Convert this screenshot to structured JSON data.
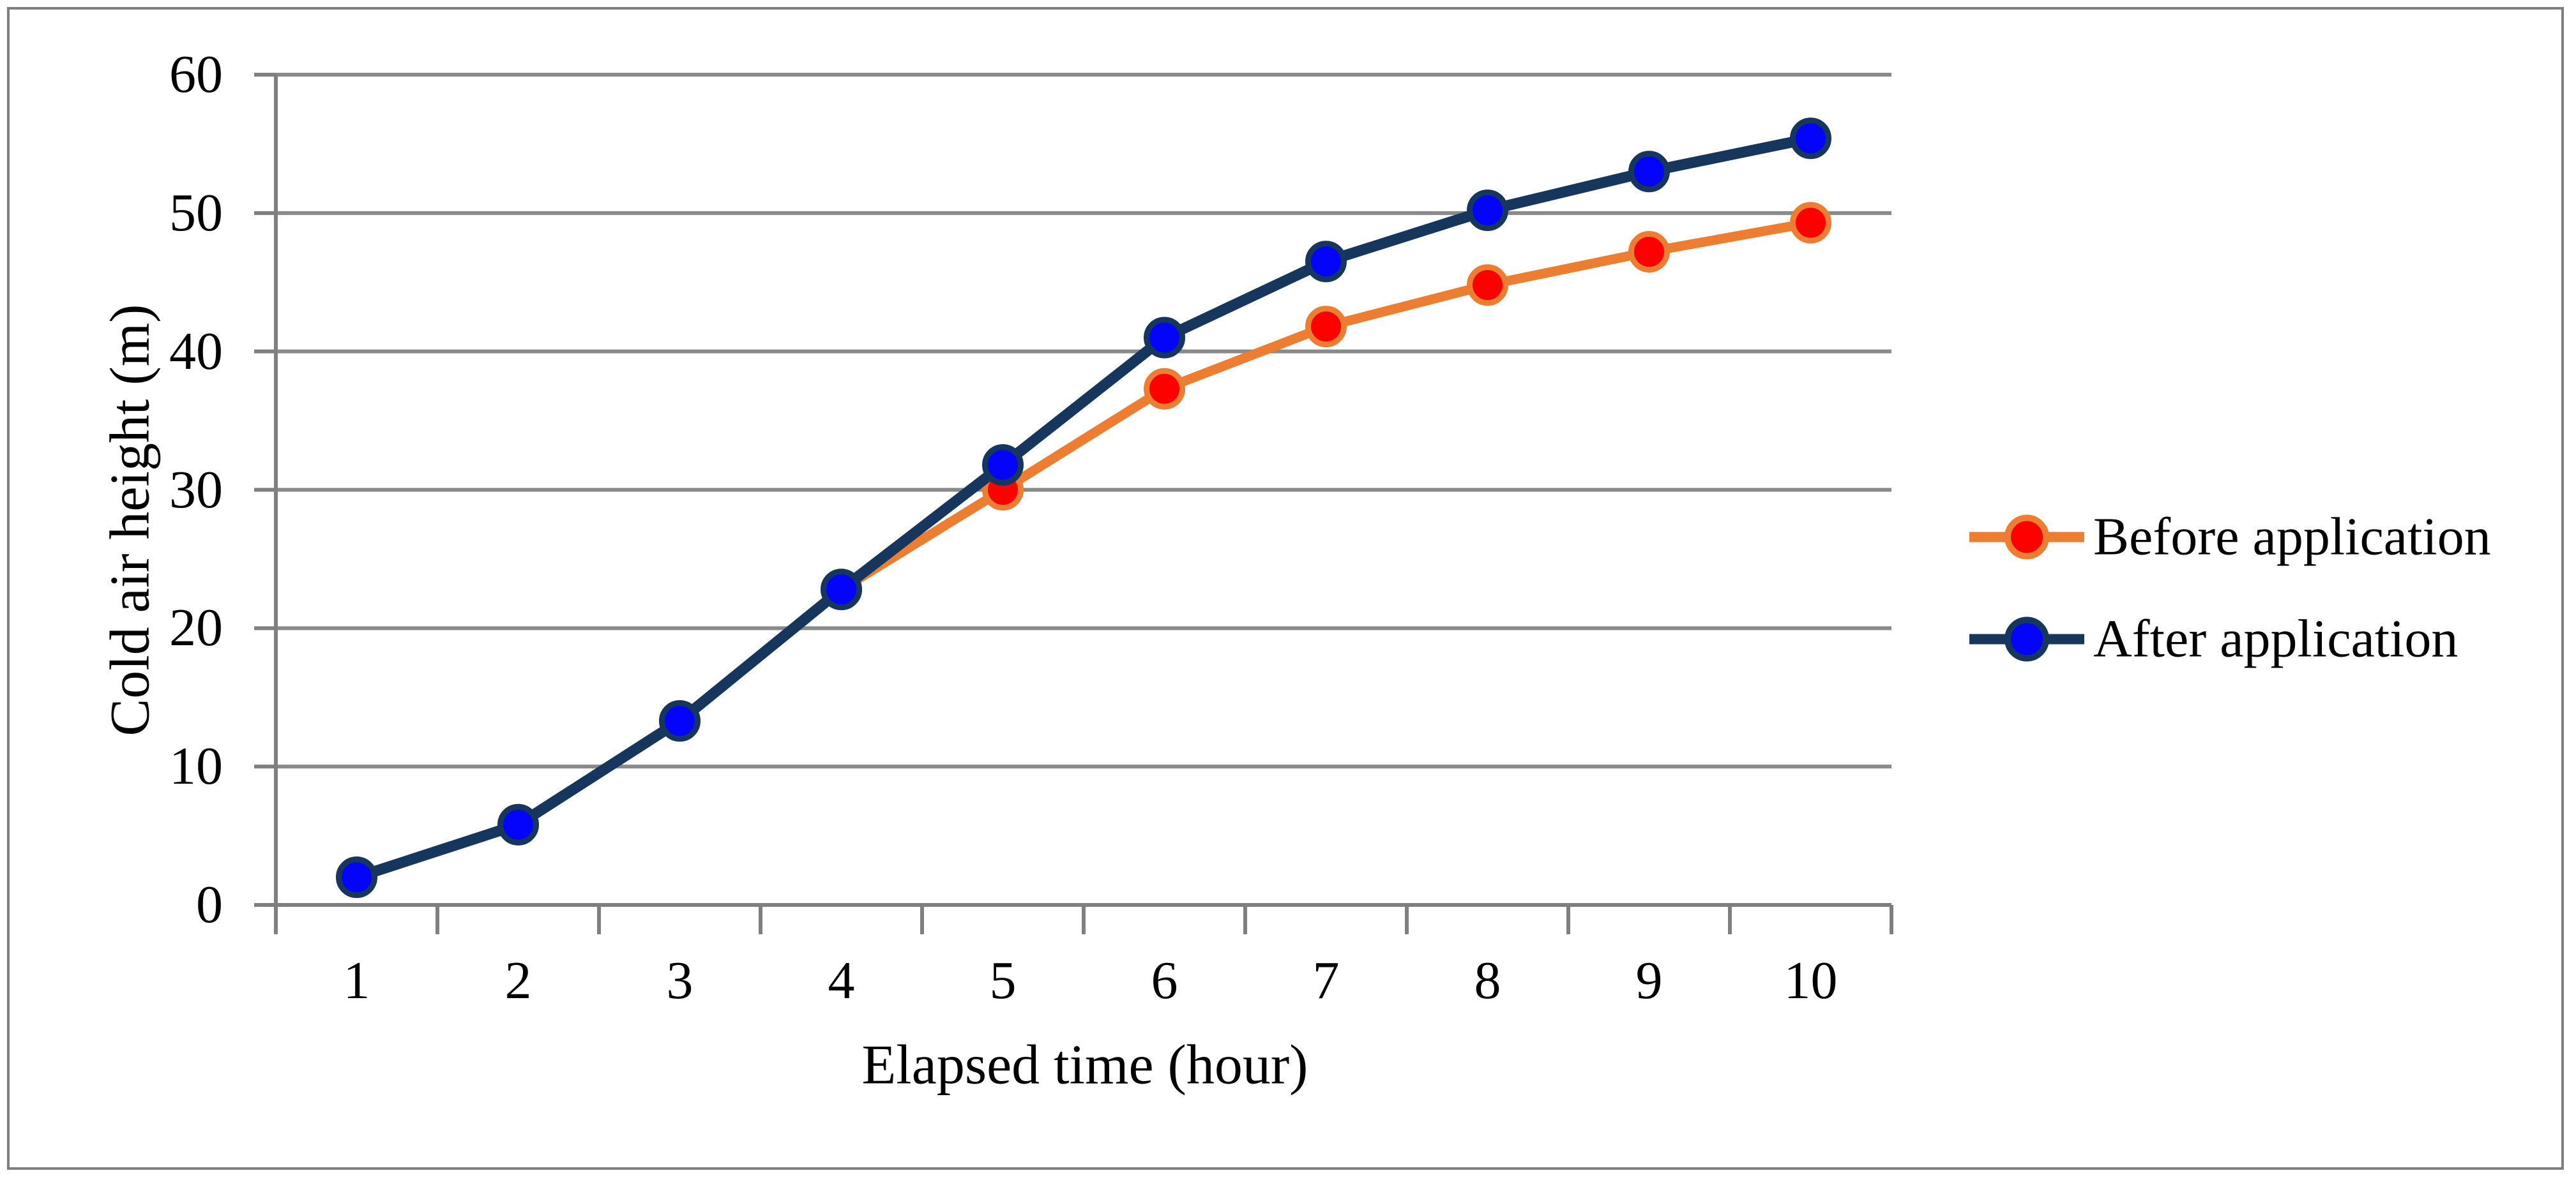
{
  "figure": {
    "border_color": "#7f7f7f",
    "background_color": "#ffffff"
  },
  "chart_data": {
    "type": "line",
    "title": "",
    "xlabel": "Elapsed time (hour)",
    "ylabel": "Cold air height (m)",
    "x": [
      1,
      2,
      3,
      4,
      5,
      6,
      7,
      8,
      9,
      10
    ],
    "x_tick_labels": [
      "1",
      "2",
      "3",
      "4",
      "5",
      "6",
      "7",
      "8",
      "9",
      "10"
    ],
    "y_ticks": [
      0,
      10,
      20,
      30,
      40,
      50,
      60
    ],
    "y_tick_labels": [
      "0",
      "10",
      "20",
      "30",
      "40",
      "50",
      "60"
    ],
    "ylim": [
      0,
      60
    ],
    "grid": "horizontal",
    "legend_position": "right",
    "series": [
      {
        "name": "Before application",
        "values": [
          2.0,
          5.8,
          13.3,
          22.8,
          30.0,
          37.3,
          41.8,
          44.8,
          47.2,
          49.3
        ],
        "line_color": "#ED7D31",
        "marker_fill": "#FE0000",
        "marker_stroke": "#ED7D31",
        "marker": "circle"
      },
      {
        "name": "After application",
        "values": [
          2.0,
          5.8,
          13.3,
          22.8,
          31.8,
          41.0,
          46.5,
          50.2,
          53.0,
          55.4
        ],
        "line_color": "#17365D",
        "marker_fill": "#0404FC",
        "marker_stroke": "#17365D",
        "marker": "circle"
      }
    ],
    "gridline_color": "#8A8A8A",
    "axis_color": "#7F7F7F",
    "text_color": "#000000"
  }
}
